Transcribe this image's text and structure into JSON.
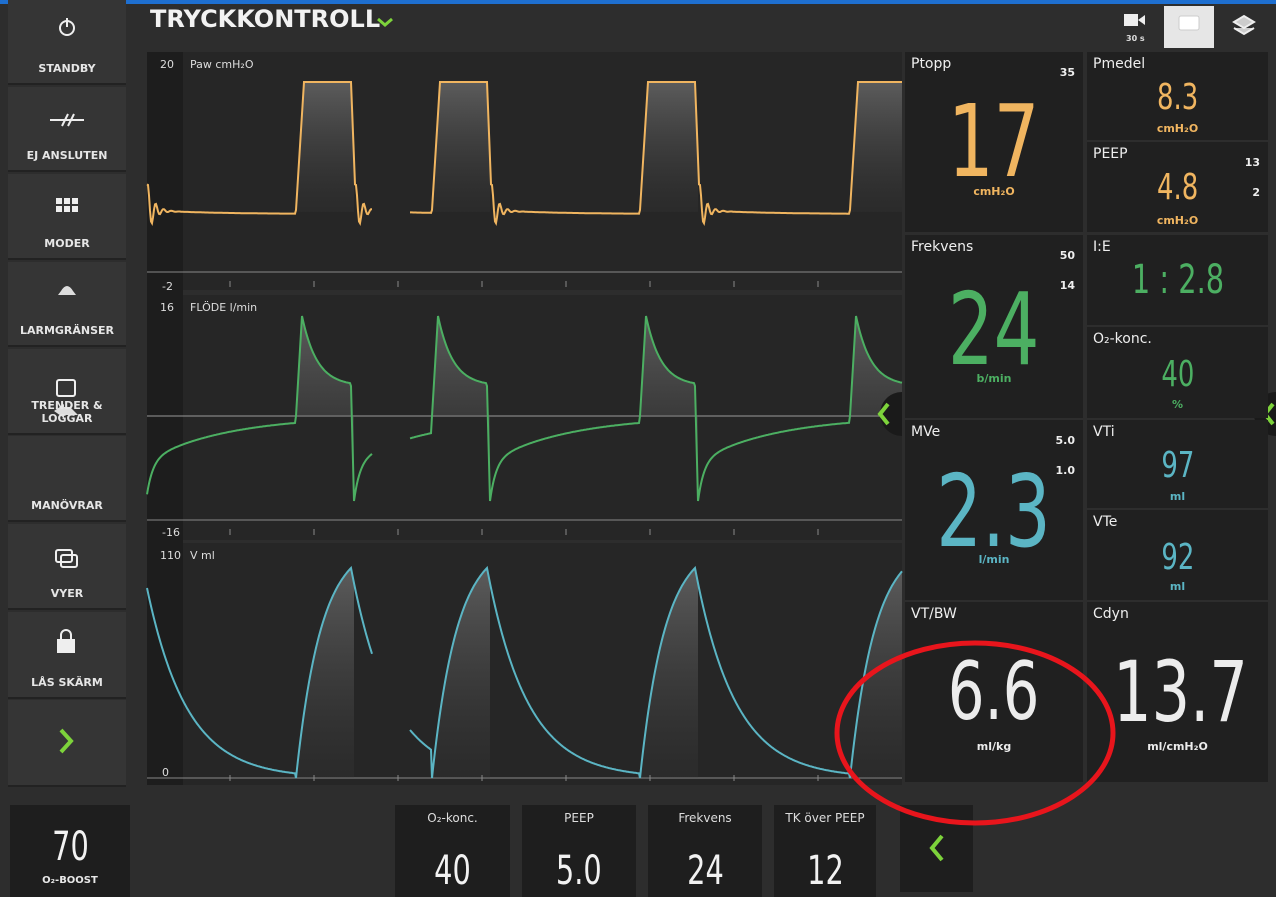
{
  "header": {
    "mode": "TRYCKKONTROLL",
    "record_label": "30 s"
  },
  "sidebar": [
    "STANDBY",
    "EJ ANSLUTEN",
    "MODER",
    "LARMGRÄNSER",
    "TRENDER & LOGGAR",
    "MANÖVRAR",
    "VYER",
    "LÅS SKÄRM"
  ],
  "waveforms": [
    {
      "label": "Paw cmH₂O",
      "max": "20",
      "min": "-2"
    },
    {
      "label": "FLÖDE l/min",
      "max": "16",
      "min": "-16"
    },
    {
      "label": "V ml",
      "max": "110",
      "min": "0"
    }
  ],
  "parameters": [
    {
      "name": "Ptopp",
      "value": "17",
      "unit": "cmH₂O",
      "limits": [
        "35"
      ]
    },
    {
      "name": "Pmedel",
      "value": "8.3",
      "unit": "cmH₂O"
    },
    {
      "name": "PEEP",
      "value": "4.8",
      "unit": "cmH₂O",
      "limits": [
        "13",
        "2"
      ]
    },
    {
      "name": "Frekvens",
      "value": "24",
      "unit": "b/min",
      "limits": [
        "50",
        "14"
      ]
    },
    {
      "name": "I:E",
      "value": "1 : 2.8"
    },
    {
      "name": "O₂-konc.",
      "value": "40",
      "unit": "%"
    },
    {
      "name": "MVe",
      "value": "2.3",
      "unit": "l/min",
      "limits": [
        "5.0",
        "1.0"
      ]
    },
    {
      "name": "VTi",
      "value": "97",
      "unit": "ml"
    },
    {
      "name": "VTe",
      "value": "92",
      "unit": "ml"
    },
    {
      "name": "VT/BW",
      "value": "6.6",
      "unit": "ml/kg"
    },
    {
      "name": "Cdyn",
      "value": "13.7",
      "unit": "ml/cmH₂O"
    }
  ],
  "o2_boost": {
    "value": "70",
    "label": "O₂-BOOST"
  },
  "settings": [
    {
      "name": "O₂-konc.",
      "value": "40"
    },
    {
      "name": "PEEP",
      "value": "5.0"
    },
    {
      "name": "Frekvens",
      "value": "24"
    },
    {
      "name": "TK över PEEP",
      "value": "12"
    }
  ]
}
